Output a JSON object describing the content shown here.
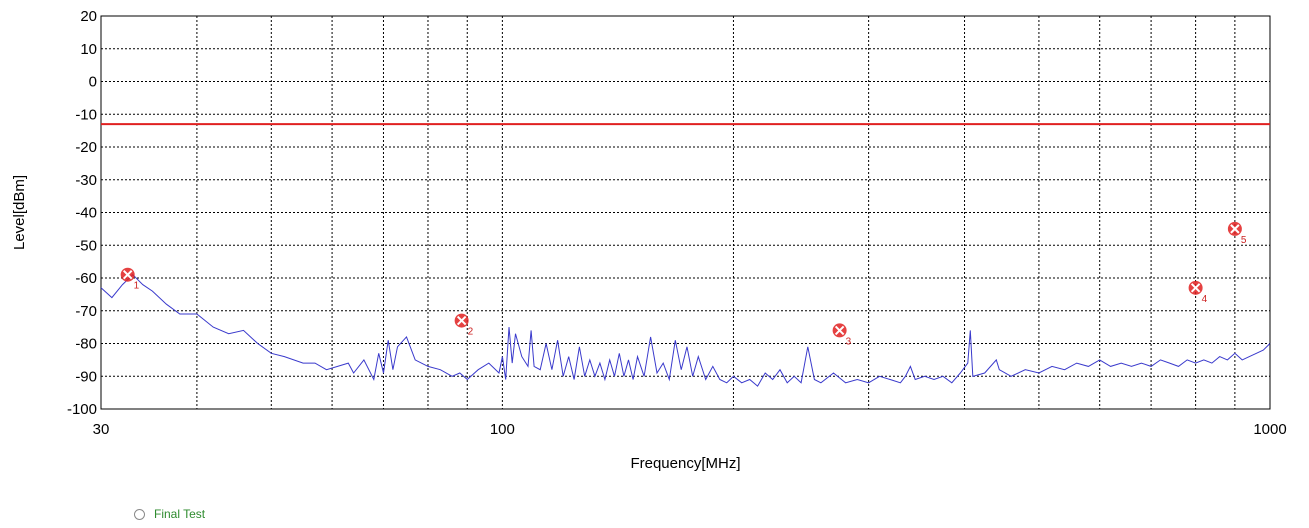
{
  "chart_data": {
    "type": "line",
    "xlabel": "Frequency[MHz]",
    "ylabel": "Level[dBm]",
    "x_scale": "log",
    "xlim": [
      30,
      1000
    ],
    "ylim": [
      -100,
      20
    ],
    "x_ticks": [
      30,
      100,
      1000
    ],
    "y_ticks": [
      20,
      10,
      0,
      -10,
      -20,
      -30,
      -40,
      -50,
      -60,
      -70,
      -80,
      -90,
      -100
    ],
    "grid": true,
    "colors": {
      "trace": "#3a3acc",
      "limit": "#e02020",
      "marker": "#e02020"
    },
    "limit_line": {
      "level": -13
    },
    "series": [
      {
        "values": [
          [
            30,
            -63
          ],
          [
            31,
            -66
          ],
          [
            32,
            -62
          ],
          [
            33,
            -59
          ],
          [
            34,
            -62
          ],
          [
            35,
            -64
          ],
          [
            36.5,
            -68
          ],
          [
            38,
            -71
          ],
          [
            40,
            -71
          ],
          [
            42,
            -75
          ],
          [
            44,
            -77
          ],
          [
            46,
            -76
          ],
          [
            48,
            -80
          ],
          [
            50,
            -83
          ],
          [
            52,
            -84
          ],
          [
            55,
            -86
          ],
          [
            57,
            -86
          ],
          [
            59,
            -88
          ],
          [
            61,
            -87
          ],
          [
            63,
            -86
          ],
          [
            64,
            -89
          ],
          [
            66,
            -85
          ],
          [
            68,
            -91
          ],
          [
            69,
            -83
          ],
          [
            70,
            -89
          ],
          [
            71,
            -79
          ],
          [
            72,
            -88
          ],
          [
            73,
            -81
          ],
          [
            75,
            -78
          ],
          [
            77,
            -85
          ],
          [
            80,
            -87
          ],
          [
            83,
            -88
          ],
          [
            86,
            -90
          ],
          [
            88,
            -89
          ],
          [
            90,
            -91
          ],
          [
            93,
            -88
          ],
          [
            96,
            -86
          ],
          [
            99,
            -89
          ],
          [
            100,
            -84
          ],
          [
            101,
            -91
          ],
          [
            102,
            -75
          ],
          [
            103,
            -86
          ],
          [
            104,
            -77
          ],
          [
            106,
            -84
          ],
          [
            108,
            -87
          ],
          [
            109,
            -76
          ],
          [
            110,
            -87
          ],
          [
            112,
            -88
          ],
          [
            114,
            -80
          ],
          [
            116,
            -88
          ],
          [
            118,
            -79
          ],
          [
            120,
            -90
          ],
          [
            122,
            -84
          ],
          [
            124,
            -91
          ],
          [
            126,
            -81
          ],
          [
            128,
            -90
          ],
          [
            130,
            -85
          ],
          [
            132,
            -90
          ],
          [
            134,
            -86
          ],
          [
            136,
            -91
          ],
          [
            138,
            -85
          ],
          [
            140,
            -90
          ],
          [
            142,
            -83
          ],
          [
            144,
            -90
          ],
          [
            146,
            -85
          ],
          [
            148,
            -91
          ],
          [
            150,
            -84
          ],
          [
            153,
            -90
          ],
          [
            156,
            -78
          ],
          [
            159,
            -89
          ],
          [
            162,
            -86
          ],
          [
            165,
            -91
          ],
          [
            168,
            -79
          ],
          [
            171,
            -88
          ],
          [
            174,
            -81
          ],
          [
            177,
            -90
          ],
          [
            180,
            -84
          ],
          [
            184,
            -91
          ],
          [
            188,
            -87
          ],
          [
            192,
            -91
          ],
          [
            196,
            -92
          ],
          [
            200,
            -90
          ],
          [
            205,
            -92
          ],
          [
            210,
            -91
          ],
          [
            215,
            -93
          ],
          [
            220,
            -89
          ],
          [
            225,
            -91
          ],
          [
            230,
            -88
          ],
          [
            235,
            -92
          ],
          [
            240,
            -90
          ],
          [
            245,
            -92
          ],
          [
            250,
            -81
          ],
          [
            255,
            -91
          ],
          [
            260,
            -92
          ],
          [
            270,
            -89
          ],
          [
            280,
            -92
          ],
          [
            290,
            -91
          ],
          [
            300,
            -92
          ],
          [
            310,
            -90
          ],
          [
            320,
            -91
          ],
          [
            330,
            -92
          ],
          [
            335,
            -90
          ],
          [
            340,
            -87
          ],
          [
            345,
            -91
          ],
          [
            355,
            -90
          ],
          [
            365,
            -91
          ],
          [
            375,
            -90
          ],
          [
            385,
            -92
          ],
          [
            395,
            -89
          ],
          [
            404,
            -86
          ],
          [
            407,
            -76
          ],
          [
            410,
            -90
          ],
          [
            425,
            -89
          ],
          [
            440,
            -85
          ],
          [
            444,
            -88
          ],
          [
            460,
            -90
          ],
          [
            480,
            -88
          ],
          [
            500,
            -89
          ],
          [
            520,
            -87
          ],
          [
            540,
            -88
          ],
          [
            560,
            -86
          ],
          [
            580,
            -87
          ],
          [
            600,
            -85
          ],
          [
            620,
            -87
          ],
          [
            640,
            -86
          ],
          [
            660,
            -87
          ],
          [
            680,
            -86
          ],
          [
            700,
            -87
          ],
          [
            720,
            -85
          ],
          [
            740,
            -86
          ],
          [
            760,
            -87
          ],
          [
            780,
            -85
          ],
          [
            800,
            -86
          ],
          [
            820,
            -85
          ],
          [
            840,
            -86
          ],
          [
            860,
            -84
          ],
          [
            880,
            -85
          ],
          [
            900,
            -83
          ],
          [
            920,
            -85
          ],
          [
            940,
            -84
          ],
          [
            960,
            -83
          ],
          [
            980,
            -82
          ],
          [
            1000,
            -80
          ]
        ]
      }
    ],
    "markers": [
      {
        "label": "1",
        "x": 32.5,
        "y": -59
      },
      {
        "label": "2",
        "x": 88.5,
        "y": -73
      },
      {
        "label": "3",
        "x": 275,
        "y": -76
      },
      {
        "label": "4",
        "x": 800,
        "y": -63
      },
      {
        "label": "5",
        "x": 900,
        "y": -45
      }
    ]
  },
  "legend": {
    "items": [
      {
        "label": "Final Test"
      }
    ]
  }
}
